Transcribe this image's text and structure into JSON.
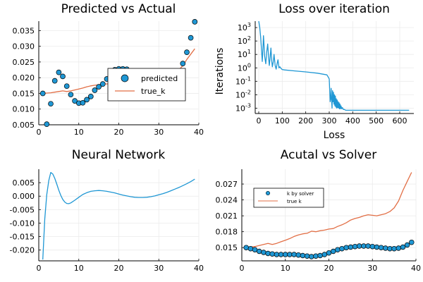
{
  "colors": {
    "predicted": "#1f97d4",
    "true": "#e26f46",
    "nn": "#1f97d4",
    "grid": "#ebebeb",
    "axis": "#000000"
  },
  "chart_data": [
    {
      "type": "scatter",
      "title": "Predicted vs Actual",
      "xlabel": "",
      "ylabel": "",
      "xlim": [
        0,
        40
      ],
      "ylim": [
        0.005,
        0.038
      ],
      "xticks": [
        0,
        10,
        20,
        30,
        40
      ],
      "yticks": [
        0.005,
        0.01,
        0.015,
        0.02,
        0.025,
        0.03,
        0.035
      ],
      "yticklabels": [
        "0.005",
        "0.010",
        "0.015",
        "0.020",
        "0.025",
        "0.030",
        "0.035"
      ],
      "grid": true,
      "legend": "center-right",
      "series": [
        {
          "name": "predicted",
          "kind": "scatter",
          "color": "#1f97d4",
          "x": [
            1,
            2,
            3,
            4,
            5,
            6,
            7,
            8,
            9,
            10,
            11,
            12,
            13,
            14,
            15,
            16,
            17,
            18,
            19,
            20,
            21,
            22,
            36,
            37,
            38,
            39
          ],
          "y": [
            0.015,
            0.0052,
            0.0117,
            0.019,
            0.0217,
            0.0204,
            0.0173,
            0.0146,
            0.0126,
            0.0119,
            0.012,
            0.013,
            0.014,
            0.016,
            0.0171,
            0.018,
            0.0196,
            0.0211,
            0.0225,
            0.0228,
            0.0228,
            0.0227,
            0.0245,
            0.0281,
            0.0327,
            0.0378
          ]
        },
        {
          "name": "true_k",
          "kind": "line",
          "color": "#e26f46",
          "x": [
            1,
            2,
            3,
            4,
            5,
            6,
            7,
            8,
            9,
            10,
            11,
            12,
            13,
            14,
            15,
            16,
            17,
            18,
            19,
            20,
            21,
            22,
            23,
            24,
            25,
            26,
            27,
            28,
            29,
            30,
            31,
            32,
            33,
            34,
            35,
            36,
            37,
            38,
            39
          ],
          "y": [
            0.015,
            0.0151,
            0.0152,
            0.0154,
            0.0156,
            0.0158,
            0.0156,
            0.0158,
            0.0161,
            0.0164,
            0.0167,
            0.0171,
            0.0174,
            0.0176,
            0.0177,
            0.0181,
            0.018,
            0.0182,
            0.0183,
            0.0185,
            0.0186,
            0.019,
            0.0193,
            0.0197,
            0.0202,
            0.0205,
            0.0207,
            0.021,
            0.0212,
            0.0211,
            0.021,
            0.0212,
            0.0214,
            0.0218,
            0.0225,
            0.0238,
            0.0258,
            0.0275,
            0.0292
          ]
        }
      ]
    },
    {
      "type": "line",
      "title": "Loss over iteration",
      "xlabel": "Loss",
      "ylabel": "Iterations",
      "xlim": [
        -15,
        660
      ],
      "ylog": true,
      "ylim": [
        0.0004,
        3000
      ],
      "xticks": [
        0,
        100,
        200,
        300,
        400,
        500,
        600
      ],
      "yticks": [
        0.001,
        0.01,
        0.1,
        1,
        10,
        100,
        1000
      ],
      "yticklabel_base": "10",
      "yticklabel_exps": [
        "-3",
        "-2",
        "-1",
        "0",
        "1",
        "2",
        "3"
      ],
      "grid": true,
      "series": [
        {
          "color": "#1f97d4",
          "x": [
            0,
            4,
            8,
            12,
            15,
            18,
            20,
            22,
            25,
            30,
            34,
            38,
            42,
            45,
            48,
            52,
            55,
            58,
            62,
            65,
            70,
            74,
            78,
            82,
            86,
            90,
            95,
            100,
            110,
            150,
            200,
            250,
            290,
            296,
            300,
            302,
            304,
            306,
            308,
            310,
            312,
            314,
            316,
            318,
            320,
            322,
            324,
            326,
            328,
            330,
            332,
            334,
            336,
            338,
            340,
            342,
            344,
            346,
            348,
            350,
            353,
            356,
            360,
            365,
            370,
            380,
            400,
            500,
            600,
            640
          ],
          "y": [
            3000,
            1200,
            200,
            20,
            3,
            30,
            250,
            80,
            8,
            2,
            15,
            60,
            6,
            1.5,
            5,
            30,
            4,
            1.2,
            3,
            10,
            1.5,
            0.8,
            2,
            4,
            1,
            1.2,
            0.9,
            0.75,
            0.7,
            0.6,
            0.5,
            0.4,
            0.3,
            0.2,
            0.15,
            0.02,
            0.003,
            0.005,
            0.03,
            0.004,
            0.001,
            0.02,
            0.003,
            0.015,
            0.002,
            0.01,
            0.0015,
            0.008,
            0.0012,
            0.005,
            0.001,
            0.004,
            0.0011,
            0.003,
            0.001,
            0.0025,
            0.0009,
            0.002,
            0.0009,
            0.0015,
            0.0009,
            0.0011,
            0.0008,
            0.0008,
            0.0007,
            0.0007,
            0.0007,
            0.0007,
            0.0007,
            0.0007
          ]
        }
      ]
    },
    {
      "type": "line",
      "title": "Neural Network",
      "xlabel": "",
      "ylabel": "",
      "xlim": [
        0,
        40
      ],
      "ylim": [
        -0.024,
        0.01
      ],
      "xticks": [
        0,
        10,
        20,
        30,
        40
      ],
      "yticks": [
        -0.02,
        -0.015,
        -0.01,
        -0.005,
        0.0,
        0.005
      ],
      "yticklabels": [
        "-0.020",
        "-0.015",
        "-0.010",
        "-0.005",
        "0.000",
        "0.005"
      ],
      "grid": true,
      "series": [
        {
          "color": "#1f97d4",
          "x": [
            1,
            1.5,
            2,
            2.5,
            3,
            3.5,
            4,
            4.5,
            5,
            5.5,
            6,
            6.5,
            7,
            7.5,
            8,
            9,
            10,
            11,
            12,
            13,
            14,
            15,
            16,
            17,
            18,
            19,
            20,
            21,
            22,
            23,
            24,
            25,
            26,
            27,
            28,
            29,
            30,
            31,
            32,
            33,
            34,
            35,
            36,
            37,
            38,
            39
          ],
          "y": [
            -0.0235,
            -0.0085,
            0.0005,
            0.0058,
            0.0088,
            0.0082,
            0.0066,
            0.0045,
            0.0022,
            0.0003,
            -0.0012,
            -0.0022,
            -0.0027,
            -0.0028,
            -0.0025,
            -0.0015,
            -0.0004,
            0.0006,
            0.0013,
            0.0018,
            0.002,
            0.0021,
            0.002,
            0.0018,
            0.0015,
            0.0012,
            0.0008,
            0.0004,
            0.0001,
            -0.0002,
            -0.0004,
            -0.0005,
            -0.0005,
            -0.0004,
            -0.0002,
            0.0001,
            0.0005,
            0.0009,
            0.0014,
            0.002,
            0.0026,
            0.0032,
            0.0039,
            0.0046,
            0.0054,
            0.0063
          ]
        }
      ]
    },
    {
      "type": "scatter",
      "title": "Acutal vs Solver",
      "xlabel": "",
      "ylabel": "",
      "xlim": [
        0,
        40
      ],
      "ylim": [
        0.0125,
        0.0298
      ],
      "xticks": [
        0,
        10,
        20,
        30,
        40
      ],
      "yticks": [
        0.015,
        0.018,
        0.021,
        0.024,
        0.027
      ],
      "yticklabels": [
        "0.015",
        "0.018",
        "0.021",
        "0.024",
        "0.027"
      ],
      "grid": true,
      "legend": "top-left",
      "series": [
        {
          "name": "k by solver",
          "kind": "scatter",
          "color": "#1f97d4",
          "x": [
            1,
            2,
            3,
            4,
            5,
            6,
            7,
            8,
            9,
            10,
            11,
            12,
            13,
            14,
            15,
            16,
            17,
            18,
            19,
            20,
            21,
            22,
            23,
            24,
            25,
            26,
            27,
            28,
            29,
            30,
            31,
            32,
            33,
            34,
            35,
            36,
            37,
            38,
            39
          ],
          "y": [
            0.015,
            0.0148,
            0.0146,
            0.0143,
            0.0141,
            0.0139,
            0.0138,
            0.0137,
            0.0137,
            0.0137,
            0.0137,
            0.0137,
            0.0136,
            0.0135,
            0.0134,
            0.0133,
            0.0134,
            0.0135,
            0.0137,
            0.014,
            0.0143,
            0.0146,
            0.0148,
            0.015,
            0.0151,
            0.0152,
            0.0153,
            0.0153,
            0.0153,
            0.0152,
            0.0151,
            0.015,
            0.0149,
            0.0148,
            0.0148,
            0.0149,
            0.0151,
            0.0155,
            0.016
          ]
        },
        {
          "name": "true k",
          "kind": "line",
          "color": "#e26f46",
          "x": [
            1,
            2,
            3,
            4,
            5,
            6,
            7,
            8,
            9,
            10,
            11,
            12,
            13,
            14,
            15,
            16,
            17,
            18,
            19,
            20,
            21,
            22,
            23,
            24,
            25,
            26,
            27,
            28,
            29,
            30,
            31,
            32,
            33,
            34,
            35,
            36,
            37,
            38,
            39
          ],
          "y": [
            0.015,
            0.0151,
            0.0152,
            0.0154,
            0.0156,
            0.0158,
            0.0156,
            0.0158,
            0.0161,
            0.0164,
            0.0167,
            0.0171,
            0.0174,
            0.0176,
            0.0177,
            0.0181,
            0.018,
            0.0182,
            0.0183,
            0.0185,
            0.0186,
            0.019,
            0.0193,
            0.0197,
            0.0202,
            0.0205,
            0.0207,
            0.021,
            0.0212,
            0.0211,
            0.021,
            0.0212,
            0.0214,
            0.0218,
            0.0225,
            0.0238,
            0.0258,
            0.0275,
            0.0292
          ]
        }
      ]
    }
  ]
}
